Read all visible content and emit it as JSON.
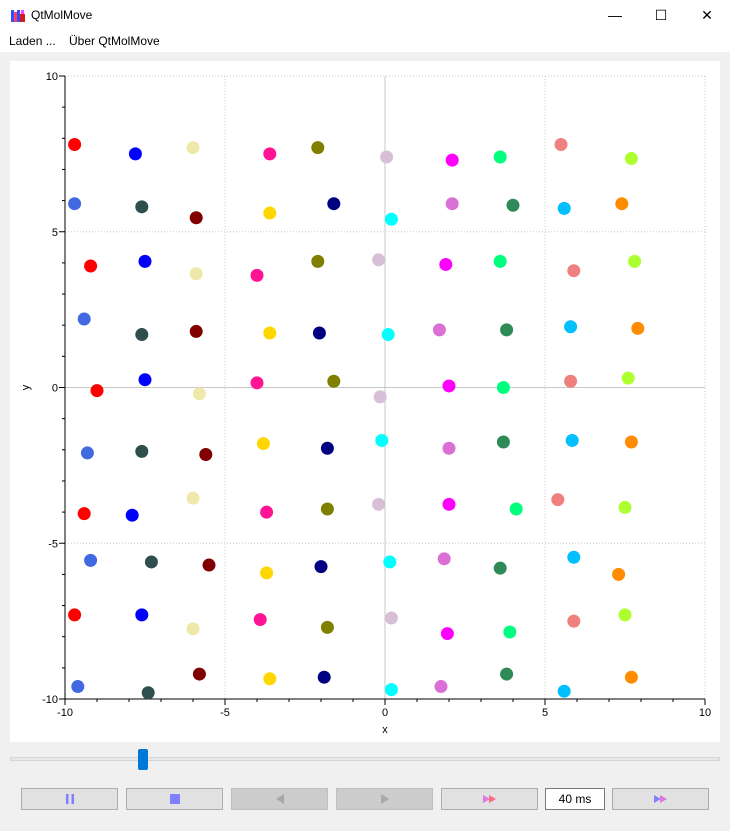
{
  "window": {
    "title": "QtMolMove"
  },
  "window_controls": {
    "minimize": "—",
    "maximize": "☐",
    "close": "✕"
  },
  "menu": {
    "load": "Laden ...",
    "about": "Über QtMolMove"
  },
  "controls": {
    "interval": "40 ms",
    "pause_icon": "pause-icon",
    "stop_icon": "stop-icon",
    "back_icon": "step-back-icon",
    "forward_icon": "step-forward-icon",
    "fast_icon": "fast-forward-icon",
    "fastest_icon": "fastest-forward-icon",
    "accent_color": "#0078d7",
    "icon_color": "#8080ff",
    "fast_icon_color": "#d87ae0"
  },
  "slider": {
    "position_fraction": 0.19
  },
  "chart_data": {
    "type": "scatter",
    "xlabel": "x",
    "ylabel": "y",
    "xlim": [
      -10,
      10
    ],
    "ylim": [
      -10,
      10
    ],
    "xticks": [
      "-10",
      "-5",
      "0",
      "5",
      "10"
    ],
    "yticks": [
      "-10",
      "-5",
      "0",
      "5",
      "10"
    ],
    "grid": true,
    "points": [
      {
        "x": -9.7,
        "y": 7.8,
        "color": "#ff0000"
      },
      {
        "x": -7.8,
        "y": 7.5,
        "color": "#0000ff"
      },
      {
        "x": -6.0,
        "y": 7.7,
        "color": "#eee8aa"
      },
      {
        "x": -3.6,
        "y": 7.5,
        "color": "#ff1493"
      },
      {
        "x": -2.1,
        "y": 7.7,
        "color": "#808000"
      },
      {
        "x": 0.05,
        "y": 7.4,
        "color": "#d8bfd8"
      },
      {
        "x": 2.1,
        "y": 7.3,
        "color": "#ff00ff"
      },
      {
        "x": 3.6,
        "y": 7.4,
        "color": "#00ff7f"
      },
      {
        "x": 5.5,
        "y": 7.8,
        "color": "#f08080"
      },
      {
        "x": 7.7,
        "y": 7.35,
        "color": "#adff2f"
      },
      {
        "x": -9.7,
        "y": 5.9,
        "color": "#4169e1"
      },
      {
        "x": -7.6,
        "y": 5.8,
        "color": "#2f4f4f"
      },
      {
        "x": -5.9,
        "y": 5.45,
        "color": "#800000"
      },
      {
        "x": -3.6,
        "y": 5.6,
        "color": "#ffd700"
      },
      {
        "x": -1.6,
        "y": 5.9,
        "color": "#000080"
      },
      {
        "x": 0.2,
        "y": 5.4,
        "color": "#00ffff"
      },
      {
        "x": 2.1,
        "y": 5.9,
        "color": "#da70d6"
      },
      {
        "x": 4.0,
        "y": 5.85,
        "color": "#2e8b57"
      },
      {
        "x": 5.6,
        "y": 5.75,
        "color": "#00bfff"
      },
      {
        "x": 7.4,
        "y": 5.9,
        "color": "#ff8c00"
      },
      {
        "x": -9.2,
        "y": 3.9,
        "color": "#ff0000"
      },
      {
        "x": -7.5,
        "y": 4.05,
        "color": "#0000ff"
      },
      {
        "x": -5.9,
        "y": 3.65,
        "color": "#eee8aa"
      },
      {
        "x": -4.0,
        "y": 3.6,
        "color": "#ff1493"
      },
      {
        "x": -2.1,
        "y": 4.05,
        "color": "#808000"
      },
      {
        "x": -0.2,
        "y": 4.1,
        "color": "#d8bfd8"
      },
      {
        "x": 1.9,
        "y": 3.95,
        "color": "#ff00ff"
      },
      {
        "x": 3.6,
        "y": 4.05,
        "color": "#00ff7f"
      },
      {
        "x": 5.9,
        "y": 3.75,
        "color": "#f08080"
      },
      {
        "x": 7.8,
        "y": 4.05,
        "color": "#adff2f"
      },
      {
        "x": -9.4,
        "y": 2.2,
        "color": "#4169e1"
      },
      {
        "x": -7.6,
        "y": 1.7,
        "color": "#2f4f4f"
      },
      {
        "x": -5.9,
        "y": 1.8,
        "color": "#800000"
      },
      {
        "x": -3.6,
        "y": 1.75,
        "color": "#ffd700"
      },
      {
        "x": -2.05,
        "y": 1.75,
        "color": "#000080"
      },
      {
        "x": 0.1,
        "y": 1.7,
        "color": "#00ffff"
      },
      {
        "x": 1.7,
        "y": 1.85,
        "color": "#da70d6"
      },
      {
        "x": 3.8,
        "y": 1.85,
        "color": "#2e8b57"
      },
      {
        "x": 5.8,
        "y": 1.95,
        "color": "#00bfff"
      },
      {
        "x": 7.9,
        "y": 1.9,
        "color": "#ff8c00"
      },
      {
        "x": -9.0,
        "y": -0.1,
        "color": "#ff0000"
      },
      {
        "x": -7.5,
        "y": 0.25,
        "color": "#0000ff"
      },
      {
        "x": -5.8,
        "y": -0.2,
        "color": "#eee8aa"
      },
      {
        "x": -4.0,
        "y": 0.15,
        "color": "#ff1493"
      },
      {
        "x": -1.6,
        "y": 0.2,
        "color": "#808000"
      },
      {
        "x": -0.15,
        "y": -0.3,
        "color": "#d8bfd8"
      },
      {
        "x": 2.0,
        "y": 0.05,
        "color": "#ff00ff"
      },
      {
        "x": 3.7,
        "y": 0.0,
        "color": "#00ff7f"
      },
      {
        "x": 5.8,
        "y": 0.2,
        "color": "#f08080"
      },
      {
        "x": 7.6,
        "y": 0.3,
        "color": "#adff2f"
      },
      {
        "x": -9.3,
        "y": -2.1,
        "color": "#4169e1"
      },
      {
        "x": -7.6,
        "y": -2.05,
        "color": "#2f4f4f"
      },
      {
        "x": -5.6,
        "y": -2.15,
        "color": "#800000"
      },
      {
        "x": -3.8,
        "y": -1.8,
        "color": "#ffd700"
      },
      {
        "x": -1.8,
        "y": -1.95,
        "color": "#000080"
      },
      {
        "x": -0.1,
        "y": -1.7,
        "color": "#00ffff"
      },
      {
        "x": 2.0,
        "y": -1.95,
        "color": "#da70d6"
      },
      {
        "x": 3.7,
        "y": -1.75,
        "color": "#2e8b57"
      },
      {
        "x": 5.85,
        "y": -1.7,
        "color": "#00bfff"
      },
      {
        "x": 7.7,
        "y": -1.75,
        "color": "#ff8c00"
      },
      {
        "x": -9.4,
        "y": -4.05,
        "color": "#ff0000"
      },
      {
        "x": -7.9,
        "y": -4.1,
        "color": "#0000ff"
      },
      {
        "x": -6.0,
        "y": -3.55,
        "color": "#eee8aa"
      },
      {
        "x": -3.7,
        "y": -4.0,
        "color": "#ff1493"
      },
      {
        "x": -1.8,
        "y": -3.9,
        "color": "#808000"
      },
      {
        "x": -0.2,
        "y": -3.75,
        "color": "#d8bfd8"
      },
      {
        "x": 2.0,
        "y": -3.75,
        "color": "#ff00ff"
      },
      {
        "x": 4.1,
        "y": -3.9,
        "color": "#00ff7f"
      },
      {
        "x": 5.4,
        "y": -3.6,
        "color": "#f08080"
      },
      {
        "x": 7.5,
        "y": -3.85,
        "color": "#adff2f"
      },
      {
        "x": -9.2,
        "y": -5.55,
        "color": "#4169e1"
      },
      {
        "x": -7.3,
        "y": -5.6,
        "color": "#2f4f4f"
      },
      {
        "x": -5.5,
        "y": -5.7,
        "color": "#800000"
      },
      {
        "x": -3.7,
        "y": -5.95,
        "color": "#ffd700"
      },
      {
        "x": -2.0,
        "y": -5.75,
        "color": "#000080"
      },
      {
        "x": 0.15,
        "y": -5.6,
        "color": "#00ffff"
      },
      {
        "x": 1.85,
        "y": -5.5,
        "color": "#da70d6"
      },
      {
        "x": 3.6,
        "y": -5.8,
        "color": "#2e8b57"
      },
      {
        "x": 5.9,
        "y": -5.45,
        "color": "#00bfff"
      },
      {
        "x": 7.3,
        "y": -6.0,
        "color": "#ff8c00"
      },
      {
        "x": -9.7,
        "y": -7.3,
        "color": "#ff0000"
      },
      {
        "x": -7.6,
        "y": -7.3,
        "color": "#0000ff"
      },
      {
        "x": -6.0,
        "y": -7.75,
        "color": "#eee8aa"
      },
      {
        "x": -3.9,
        "y": -7.45,
        "color": "#ff1493"
      },
      {
        "x": -1.8,
        "y": -7.7,
        "color": "#808000"
      },
      {
        "x": 0.2,
        "y": -7.4,
        "color": "#d8bfd8"
      },
      {
        "x": 1.95,
        "y": -7.9,
        "color": "#ff00ff"
      },
      {
        "x": 3.9,
        "y": -7.85,
        "color": "#00ff7f"
      },
      {
        "x": 5.9,
        "y": -7.5,
        "color": "#f08080"
      },
      {
        "x": 7.5,
        "y": -7.3,
        "color": "#adff2f"
      },
      {
        "x": -9.6,
        "y": -9.6,
        "color": "#4169e1"
      },
      {
        "x": -7.4,
        "y": -9.8,
        "color": "#2f4f4f"
      },
      {
        "x": -5.8,
        "y": -9.2,
        "color": "#800000"
      },
      {
        "x": -3.6,
        "y": -9.35,
        "color": "#ffd700"
      },
      {
        "x": -1.9,
        "y": -9.3,
        "color": "#000080"
      },
      {
        "x": 0.2,
        "y": -9.7,
        "color": "#00ffff"
      },
      {
        "x": 1.75,
        "y": -9.6,
        "color": "#da70d6"
      },
      {
        "x": 3.8,
        "y": -9.2,
        "color": "#2e8b57"
      },
      {
        "x": 5.6,
        "y": -9.75,
        "color": "#00bfff"
      },
      {
        "x": 7.7,
        "y": -9.3,
        "color": "#ff8c00"
      }
    ]
  }
}
